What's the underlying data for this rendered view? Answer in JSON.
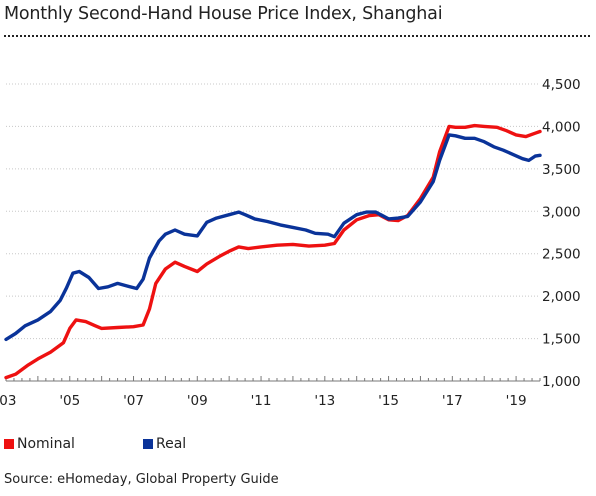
{
  "title": "Monthly Second-Hand House Price Index, Shanghai",
  "source": "Source: eHomeday, Global Property Guide",
  "colors": {
    "nominal": "#ee1111",
    "real": "#0a3399",
    "grid": "#c8c8c8"
  },
  "chart_data": {
    "type": "line",
    "title": "Monthly Second-Hand House Price Index, Shanghai",
    "xlabel": "",
    "ylabel": "",
    "xlim": [
      2003.0,
      2019.75
    ],
    "ylim": [
      1000,
      4500
    ],
    "yticks": [
      1000,
      1500,
      2000,
      2500,
      3000,
      3500,
      4000,
      4500
    ],
    "ytick_labels": [
      "1,000",
      "1,500",
      "2,000",
      "2,500",
      "3,000",
      "3,500",
      "4,000",
      "4,500"
    ],
    "xticks": [
      2003,
      2005,
      2007,
      2009,
      2011,
      2013,
      2015,
      2017,
      2019
    ],
    "xtick_labels": [
      "'03",
      "'05",
      "'07",
      "'09",
      "'11",
      "'13",
      "'15",
      "'17",
      "'19"
    ],
    "grid": true,
    "legend_position": "bottom-left",
    "series": [
      {
        "name": "Nominal",
        "color": "#ee1111",
        "points": [
          [
            2003.0,
            1040
          ],
          [
            2003.3,
            1080
          ],
          [
            2003.7,
            1190
          ],
          [
            2004.0,
            1260
          ],
          [
            2004.4,
            1340
          ],
          [
            2004.8,
            1450
          ],
          [
            2005.0,
            1620
          ],
          [
            2005.2,
            1720
          ],
          [
            2005.5,
            1700
          ],
          [
            2005.8,
            1650
          ],
          [
            2006.0,
            1620
          ],
          [
            2006.5,
            1630
          ],
          [
            2007.0,
            1640
          ],
          [
            2007.3,
            1660
          ],
          [
            2007.5,
            1850
          ],
          [
            2007.7,
            2150
          ],
          [
            2008.0,
            2320
          ],
          [
            2008.3,
            2400
          ],
          [
            2008.6,
            2350
          ],
          [
            2009.0,
            2290
          ],
          [
            2009.3,
            2380
          ],
          [
            2009.7,
            2470
          ],
          [
            2010.0,
            2530
          ],
          [
            2010.3,
            2580
          ],
          [
            2010.6,
            2560
          ],
          [
            2011.0,
            2580
          ],
          [
            2011.5,
            2600
          ],
          [
            2012.0,
            2610
          ],
          [
            2012.5,
            2590
          ],
          [
            2013.0,
            2600
          ],
          [
            2013.3,
            2620
          ],
          [
            2013.6,
            2780
          ],
          [
            2014.0,
            2900
          ],
          [
            2014.4,
            2950
          ],
          [
            2014.7,
            2960
          ],
          [
            2015.0,
            2900
          ],
          [
            2015.3,
            2890
          ],
          [
            2015.6,
            2950
          ],
          [
            2016.0,
            3150
          ],
          [
            2016.4,
            3400
          ],
          [
            2016.6,
            3700
          ],
          [
            2016.9,
            4000
          ],
          [
            2017.1,
            3990
          ],
          [
            2017.4,
            3990
          ],
          [
            2017.7,
            4010
          ],
          [
            2018.0,
            4000
          ],
          [
            2018.4,
            3990
          ],
          [
            2018.7,
            3950
          ],
          [
            2019.0,
            3900
          ],
          [
            2019.3,
            3880
          ],
          [
            2019.6,
            3920
          ],
          [
            2019.75,
            3940
          ]
        ]
      },
      {
        "name": "Real",
        "color": "#0a3399",
        "points": [
          [
            2003.0,
            1490
          ],
          [
            2003.3,
            1560
          ],
          [
            2003.6,
            1650
          ],
          [
            2004.0,
            1720
          ],
          [
            2004.4,
            1820
          ],
          [
            2004.7,
            1950
          ],
          [
            2004.9,
            2100
          ],
          [
            2005.1,
            2270
          ],
          [
            2005.3,
            2290
          ],
          [
            2005.6,
            2220
          ],
          [
            2005.9,
            2090
          ],
          [
            2006.2,
            2110
          ],
          [
            2006.5,
            2150
          ],
          [
            2006.8,
            2120
          ],
          [
            2007.1,
            2090
          ],
          [
            2007.3,
            2200
          ],
          [
            2007.5,
            2450
          ],
          [
            2007.8,
            2650
          ],
          [
            2008.0,
            2730
          ],
          [
            2008.3,
            2780
          ],
          [
            2008.6,
            2730
          ],
          [
            2009.0,
            2710
          ],
          [
            2009.3,
            2870
          ],
          [
            2009.6,
            2920
          ],
          [
            2010.0,
            2960
          ],
          [
            2010.3,
            2990
          ],
          [
            2010.5,
            2960
          ],
          [
            2010.8,
            2910
          ],
          [
            2011.2,
            2880
          ],
          [
            2011.6,
            2840
          ],
          [
            2012.0,
            2810
          ],
          [
            2012.4,
            2780
          ],
          [
            2012.7,
            2740
          ],
          [
            2013.1,
            2730
          ],
          [
            2013.3,
            2700
          ],
          [
            2013.6,
            2860
          ],
          [
            2014.0,
            2960
          ],
          [
            2014.3,
            2990
          ],
          [
            2014.6,
            2990
          ],
          [
            2015.0,
            2910
          ],
          [
            2015.3,
            2920
          ],
          [
            2015.6,
            2940
          ],
          [
            2016.0,
            3110
          ],
          [
            2016.4,
            3350
          ],
          [
            2016.6,
            3600
          ],
          [
            2016.9,
            3900
          ],
          [
            2017.1,
            3890
          ],
          [
            2017.4,
            3860
          ],
          [
            2017.7,
            3860
          ],
          [
            2018.0,
            3820
          ],
          [
            2018.3,
            3760
          ],
          [
            2018.6,
            3720
          ],
          [
            2018.9,
            3670
          ],
          [
            2019.2,
            3620
          ],
          [
            2019.4,
            3600
          ],
          [
            2019.6,
            3650
          ],
          [
            2019.75,
            3660
          ]
        ]
      }
    ]
  }
}
